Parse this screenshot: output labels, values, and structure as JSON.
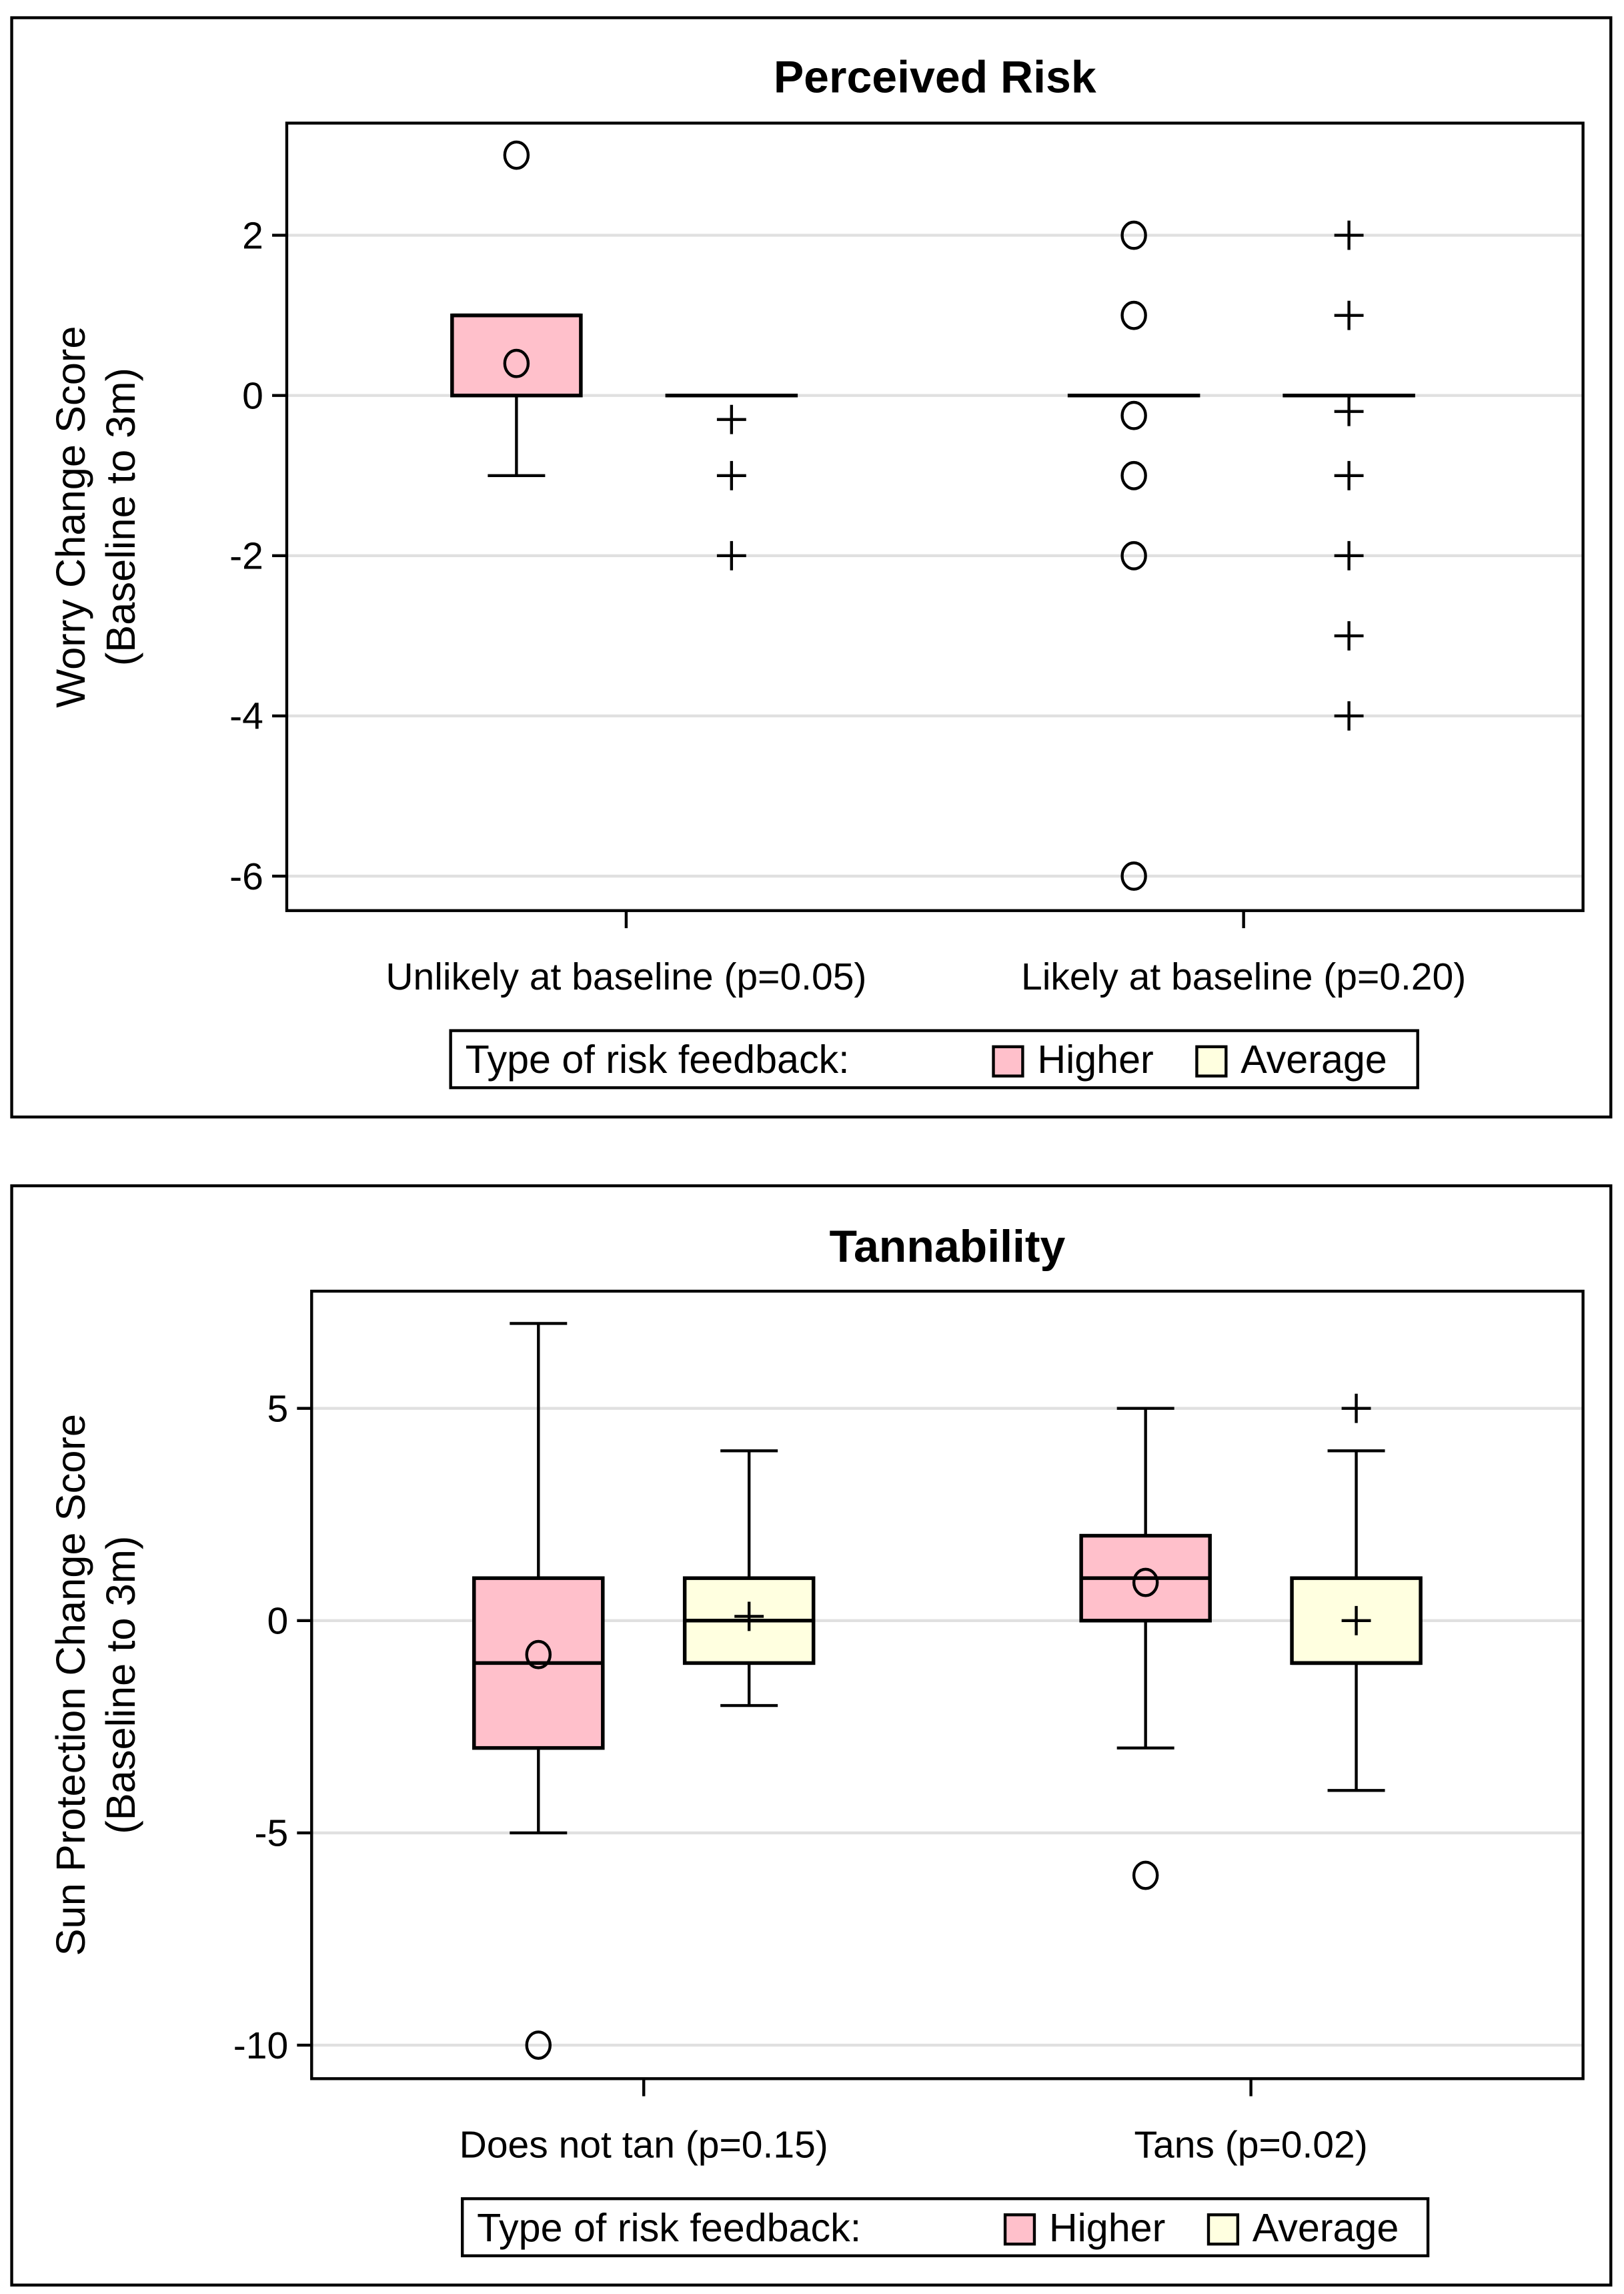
{
  "colors": {
    "higher": "#ffc0cb",
    "average": "#ffffe0",
    "grid": "#e0e0e0"
  },
  "chart_data": [
    {
      "type": "box",
      "title": "Perceived Risk",
      "ylabel_line1": "Worry Change Score",
      "ylabel_line2": "(Baseline to 3m)",
      "ylim": [
        -6.43,
        3.4
      ],
      "yticks": [
        2,
        0,
        -2,
        -4,
        -6
      ],
      "ytick_labels": [
        "2",
        "0",
        "-2",
        "-4",
        "-6"
      ],
      "categories": [
        "Unlikely at baseline (p=0.05)",
        "Likely at baseline (p=0.20)"
      ],
      "legend_title": "Type of risk feedback:",
      "legend_position": "bottom",
      "series": [
        {
          "name": "Higher",
          "mean_marker": "circle",
          "boxes": [
            {
              "q1": 0,
              "median": 1,
              "q3": 1,
              "whisker_low": -1,
              "whisker_high": 1,
              "mean": 0.4,
              "outliers": [
                3
              ]
            },
            {
              "q1": 0,
              "median": 0,
              "q3": 0,
              "whisker_low": 0,
              "whisker_high": 0,
              "mean": -0.25,
              "outliers": [
                2,
                1,
                -1,
                -2,
                -6
              ]
            }
          ]
        },
        {
          "name": "Average",
          "mean_marker": "plus",
          "boxes": [
            {
              "q1": 0,
              "median": 0,
              "q3": 0,
              "whisker_low": 0,
              "whisker_high": 0,
              "mean": -0.3,
              "outliers": [
                -1,
                -2
              ]
            },
            {
              "q1": 0,
              "median": 0,
              "q3": 0,
              "whisker_low": 0,
              "whisker_high": 0,
              "mean": -0.2,
              "outliers": [
                2,
                1,
                -1,
                -2,
                -3,
                -4
              ]
            }
          ]
        }
      ]
    },
    {
      "type": "box",
      "title": "Tannability",
      "ylabel_line1": "Sun Protection Change Score",
      "ylabel_line2": "(Baseline to 3m)",
      "ylim": [
        -10.79,
        7.76
      ],
      "yticks": [
        5,
        0,
        -5,
        -10
      ],
      "ytick_labels": [
        "5",
        "0",
        "-5",
        "-10"
      ],
      "categories": [
        "Does not tan (p=0.15)",
        "Tans (p=0.02)"
      ],
      "legend_title": "Type of risk feedback:",
      "legend_position": "bottom",
      "series": [
        {
          "name": "Higher",
          "mean_marker": "circle",
          "boxes": [
            {
              "q1": -3,
              "median": -1,
              "q3": 1,
              "whisker_low": -5,
              "whisker_high": 7,
              "mean": -0.8,
              "outliers": [
                -10
              ]
            },
            {
              "q1": 0,
              "median": 1,
              "q3": 2,
              "whisker_low": -3,
              "whisker_high": 5,
              "mean": 0.9,
              "outliers": [
                -6
              ]
            }
          ]
        },
        {
          "name": "Average",
          "mean_marker": "plus",
          "boxes": [
            {
              "q1": -1,
              "median": 0,
              "q3": 1,
              "whisker_low": -2,
              "whisker_high": 4,
              "mean": 0.1,
              "outliers": []
            },
            {
              "q1": -1,
              "median": -1,
              "q3": 1,
              "whisker_low": -4,
              "whisker_high": 4,
              "mean": 0,
              "outliers": [
                5
              ]
            }
          ]
        }
      ]
    }
  ]
}
